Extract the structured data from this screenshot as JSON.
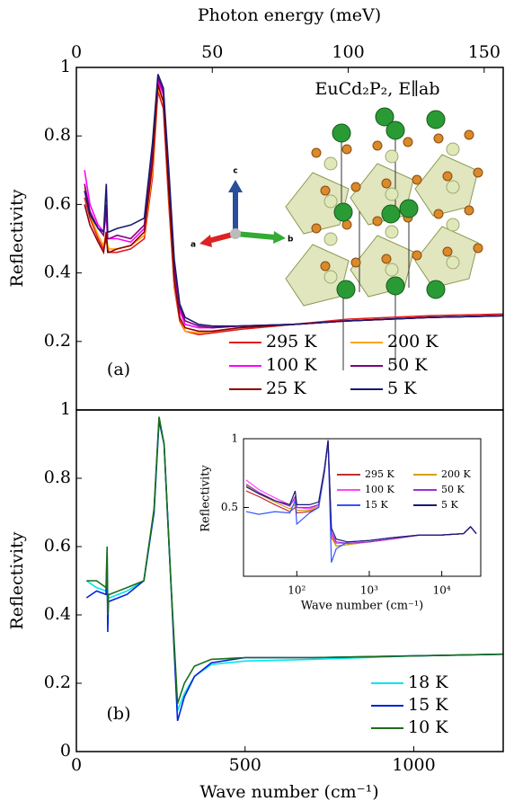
{
  "chart_data": [
    {
      "type": "line",
      "top_axis_label": "Photon energy (meV)",
      "ylabel": "Reflectivity",
      "panel_label": "(a)",
      "annotation": "EuCd₂P₂, E∥ab",
      "crystal_axes": [
        "a",
        "b",
        "c"
      ],
      "xlim": [
        0,
        157
      ],
      "xticks": [
        0,
        50,
        100,
        150
      ],
      "ylim": [
        0,
        1
      ],
      "yticks": [
        0.2,
        0.4,
        0.6,
        0.8,
        1
      ],
      "x": [
        3,
        5,
        8,
        10,
        11,
        11.5,
        12,
        15,
        20,
        25,
        28,
        30,
        32,
        34,
        36,
        38,
        40,
        45,
        50,
        60,
        80,
        100,
        130,
        157
      ],
      "series": [
        {
          "name": "295 K",
          "color": "#e41a1c",
          "values": [
            0.62,
            0.56,
            0.5,
            0.47,
            0.5,
            0.47,
            0.46,
            0.46,
            0.47,
            0.5,
            0.68,
            0.93,
            0.88,
            0.6,
            0.36,
            0.26,
            0.23,
            0.22,
            0.225,
            0.235,
            0.25,
            0.265,
            0.275,
            0.28
          ]
        },
        {
          "name": "200 K",
          "color": "#ffa500",
          "values": [
            0.65,
            0.57,
            0.51,
            0.48,
            0.52,
            0.48,
            0.47,
            0.47,
            0.48,
            0.51,
            0.7,
            0.94,
            0.9,
            0.62,
            0.37,
            0.27,
            0.23,
            0.225,
            0.23,
            0.24,
            0.25,
            0.26,
            0.27,
            0.275
          ]
        },
        {
          "name": "100 K",
          "color": "#ff00ff",
          "values": [
            0.7,
            0.6,
            0.54,
            0.52,
            0.57,
            0.5,
            0.5,
            0.5,
            0.49,
            0.53,
            0.74,
            0.96,
            0.92,
            0.66,
            0.4,
            0.29,
            0.25,
            0.24,
            0.24,
            0.245,
            0.25,
            0.26,
            0.27,
            0.275
          ]
        },
        {
          "name": "50 K",
          "color": "#800080",
          "values": [
            0.66,
            0.58,
            0.53,
            0.51,
            0.6,
            0.5,
            0.5,
            0.51,
            0.5,
            0.54,
            0.76,
            0.97,
            0.93,
            0.68,
            0.42,
            0.3,
            0.26,
            0.245,
            0.24,
            0.245,
            0.25,
            0.26,
            0.27,
            0.275
          ]
        },
        {
          "name": "25 K",
          "color": "#8b0000",
          "values": [
            0.6,
            0.54,
            0.49,
            0.46,
            0.52,
            0.46,
            0.46,
            0.47,
            0.48,
            0.52,
            0.72,
            0.95,
            0.9,
            0.63,
            0.38,
            0.27,
            0.24,
            0.23,
            0.23,
            0.24,
            0.25,
            0.26,
            0.27,
            0.275
          ]
        },
        {
          "name": "5 K",
          "color": "#191970",
          "values": [
            0.64,
            0.57,
            0.53,
            0.52,
            0.66,
            0.52,
            0.52,
            0.53,
            0.54,
            0.56,
            0.78,
            0.98,
            0.94,
            0.7,
            0.44,
            0.31,
            0.27,
            0.25,
            0.245,
            0.245,
            0.25,
            0.26,
            0.27,
            0.275
          ]
        }
      ]
    },
    {
      "type": "line",
      "xlabel": "Wave number (cm⁻¹)",
      "ylabel": "Reflectivity",
      "panel_label": "(b)",
      "xlim": [
        0,
        1265
      ],
      "xticks": [
        0,
        500,
        1000
      ],
      "ylim": [
        0,
        1
      ],
      "yticks": [
        0,
        0.2,
        0.4,
        0.6,
        0.8,
        1
      ],
      "x": [
        30,
        60,
        88,
        91,
        93,
        95,
        98,
        150,
        200,
        230,
        245,
        260,
        280,
        300,
        320,
        350,
        400,
        500,
        700,
        1000,
        1265
      ],
      "series": [
        {
          "name": "18 K",
          "color": "#00e5ee",
          "values": [
            0.5,
            0.48,
            0.47,
            0.55,
            0.4,
            0.45,
            0.45,
            0.47,
            0.5,
            0.7,
            0.97,
            0.9,
            0.5,
            0.12,
            0.17,
            0.22,
            0.255,
            0.265,
            0.27,
            0.28,
            0.285
          ]
        },
        {
          "name": "15 K",
          "color": "#0022dd",
          "values": [
            0.45,
            0.47,
            0.46,
            0.58,
            0.35,
            0.44,
            0.44,
            0.46,
            0.5,
            0.7,
            0.97,
            0.9,
            0.5,
            0.09,
            0.16,
            0.22,
            0.26,
            0.275,
            0.275,
            0.28,
            0.285
          ]
        },
        {
          "name": "10 K",
          "color": "#1a6e1a",
          "values": [
            0.5,
            0.5,
            0.48,
            0.6,
            0.4,
            0.46,
            0.46,
            0.48,
            0.5,
            0.71,
            0.98,
            0.9,
            0.5,
            0.14,
            0.2,
            0.25,
            0.27,
            0.275,
            0.275,
            0.28,
            0.285
          ]
        }
      ]
    },
    {
      "type": "line",
      "xlabel": "Wave number (cm⁻¹)",
      "ylabel": "Reflectivity",
      "xscale": "log",
      "xlim": [
        18.4,
        34500
      ],
      "xticks": [
        {
          "value": 100,
          "label": "10²"
        },
        {
          "value": 1000,
          "label": "10³"
        },
        {
          "value": 10000,
          "label": "10⁴"
        }
      ],
      "ylim": [
        0,
        1
      ],
      "yticks": [
        0.5,
        1
      ],
      "x": [
        20,
        30,
        50,
        80,
        95,
        100,
        150,
        200,
        240,
        270,
        300,
        350,
        500,
        1000,
        2000,
        5000,
        10000,
        20000,
        25000,
        30000
      ],
      "series": [
        {
          "name": "295 K",
          "color": "#c03030",
          "values": [
            0.62,
            0.58,
            0.52,
            0.47,
            0.5,
            0.46,
            0.47,
            0.5,
            0.75,
            0.98,
            0.3,
            0.22,
            0.23,
            0.25,
            0.27,
            0.3,
            0.3,
            0.31,
            0.36,
            0.31
          ]
        },
        {
          "name": "200 K",
          "color": "#d4a017",
          "values": [
            0.66,
            0.6,
            0.54,
            0.49,
            0.52,
            0.48,
            0.48,
            0.51,
            0.76,
            0.97,
            0.28,
            0.22,
            0.23,
            0.25,
            0.27,
            0.3,
            0.3,
            0.31,
            0.36,
            0.31
          ]
        },
        {
          "name": "100 K",
          "color": "#ff44ff",
          "values": [
            0.7,
            0.63,
            0.57,
            0.52,
            0.56,
            0.5,
            0.49,
            0.52,
            0.77,
            0.98,
            0.3,
            0.24,
            0.24,
            0.25,
            0.27,
            0.3,
            0.3,
            0.31,
            0.36,
            0.31
          ]
        },
        {
          "name": "50 K",
          "color": "#9932cc",
          "values": [
            0.67,
            0.61,
            0.55,
            0.51,
            0.58,
            0.5,
            0.5,
            0.52,
            0.77,
            0.98,
            0.32,
            0.25,
            0.24,
            0.25,
            0.27,
            0.3,
            0.3,
            0.31,
            0.36,
            0.31
          ]
        },
        {
          "name": "15 K",
          "color": "#3355ff",
          "values": [
            0.47,
            0.45,
            0.47,
            0.46,
            0.55,
            0.38,
            0.46,
            0.5,
            0.76,
            0.98,
            0.1,
            0.2,
            0.25,
            0.26,
            0.28,
            0.3,
            0.3,
            0.31,
            0.36,
            0.31
          ]
        },
        {
          "name": "5 K",
          "color": "#191970",
          "values": [
            0.65,
            0.6,
            0.55,
            0.52,
            0.62,
            0.52,
            0.52,
            0.54,
            0.78,
            0.99,
            0.35,
            0.27,
            0.25,
            0.26,
            0.28,
            0.3,
            0.3,
            0.31,
            0.36,
            0.31
          ]
        }
      ]
    }
  ]
}
